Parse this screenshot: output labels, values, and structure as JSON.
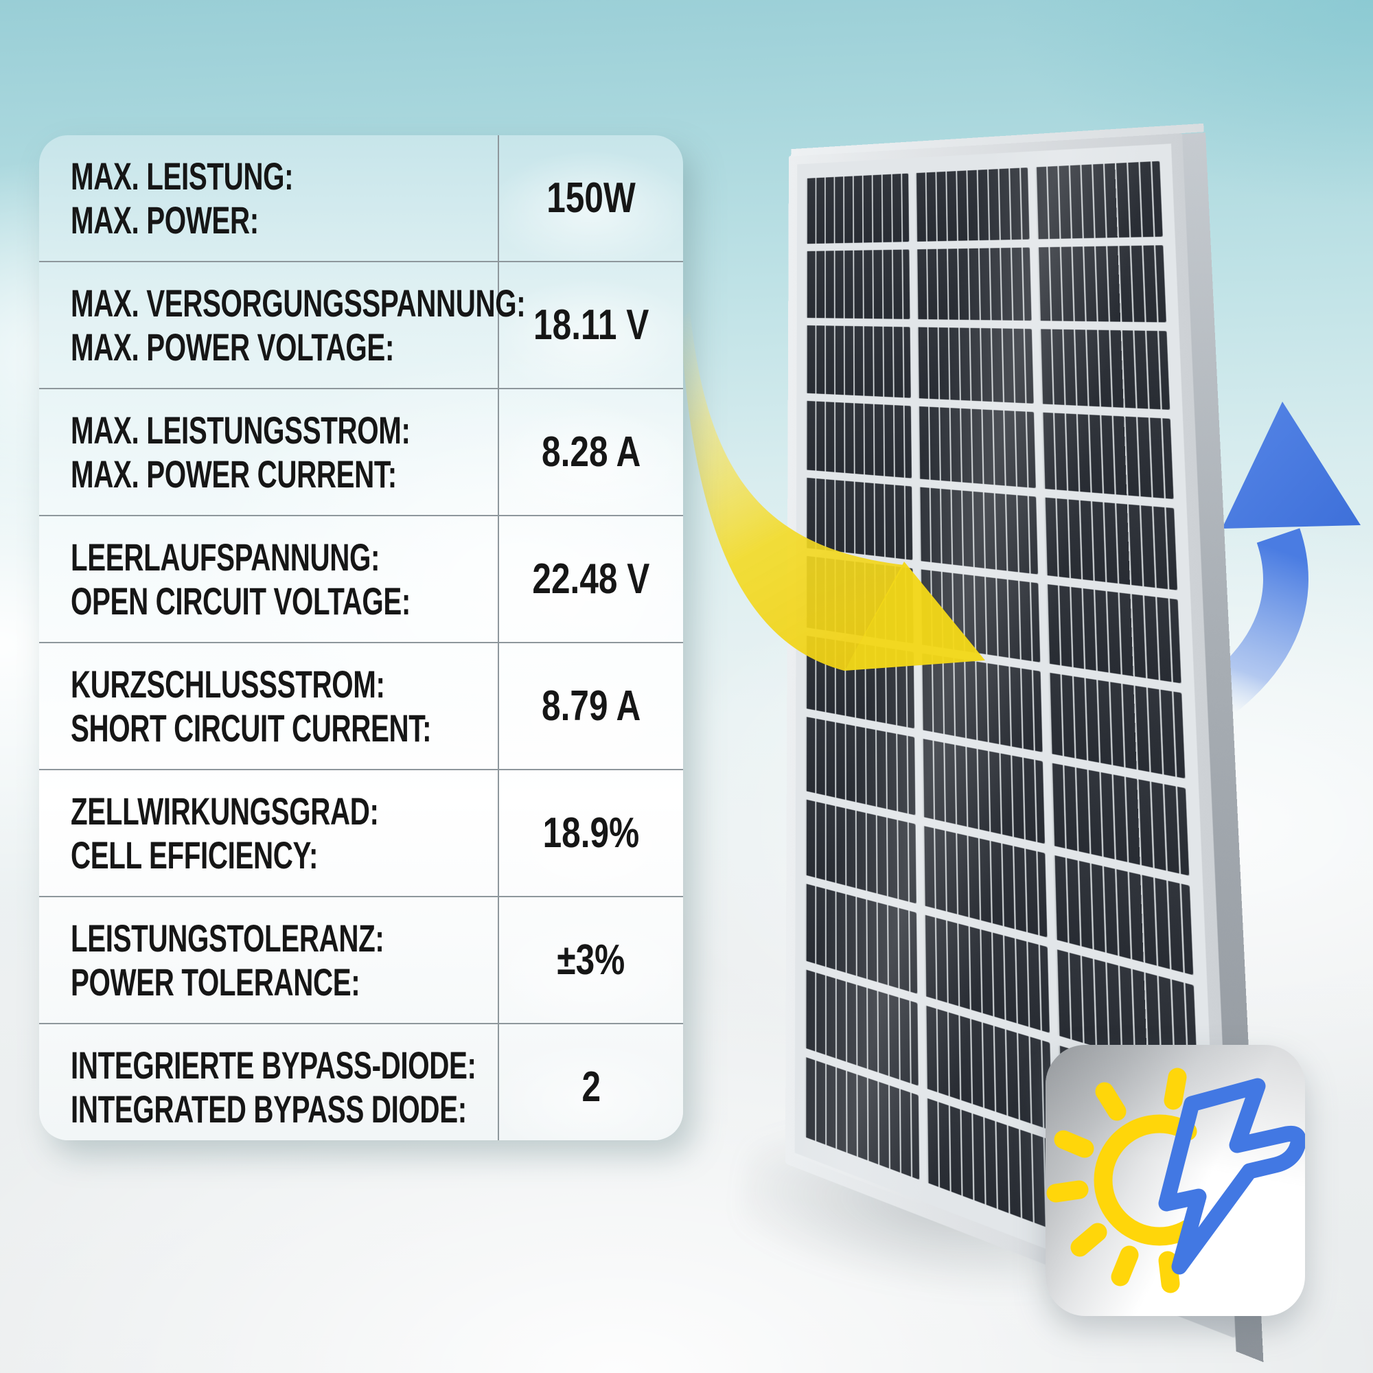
{
  "spec_table": {
    "rows": [
      {
        "label_de": "MAX. LEISTUNG:",
        "label_en": "MAX. POWER:",
        "value": "150W"
      },
      {
        "label_de": "MAX. VERSORGUNGSSPANNUNG:",
        "label_en": "MAX. POWER VOLTAGE:",
        "value": "18.11 V"
      },
      {
        "label_de": "MAX. LEISTUNGSSTROM:",
        "label_en": "MAX. POWER CURRENT:",
        "value": "8.28 A"
      },
      {
        "label_de": "LEERLAUFSPANNUNG:",
        "label_en": "OPEN CIRCUIT VOLTAGE:",
        "value": "22.48 V"
      },
      {
        "label_de": "KURZSCHLUSSSTROM:",
        "label_en": "SHORT CIRCUIT CURRENT:",
        "value": "8.79 A"
      },
      {
        "label_de": "ZELLWIRKUNGSGRAD:",
        "label_en": "CELL EFFICIENCY:",
        "value": "18.9%"
      },
      {
        "label_de": "LEISTUNGSTOLERANZ:",
        "label_en": "POWER TOLERANCE:",
        "value": "±3%"
      },
      {
        "label_de": "INTEGRIERTE BYPASS-DIODE:",
        "label_en": "INTEGRATED BYPASS DIODE:",
        "value": "2"
      }
    ]
  },
  "panel": {
    "grid_rows": 12,
    "grid_columns": 3
  },
  "badge": {
    "icons": [
      "sun",
      "lightning-bolt"
    ]
  },
  "colors": {
    "accent_yellow": "#F2D71B",
    "accent_blue": "#4A7CE2",
    "sun_yellow": "#FFD60A",
    "bolt_blue": "#4278E3",
    "pv_cell_dark": "#2B2F36",
    "sky_teal": "#99CED6",
    "table_divider": "#8E979C",
    "text_black": "#161616"
  }
}
